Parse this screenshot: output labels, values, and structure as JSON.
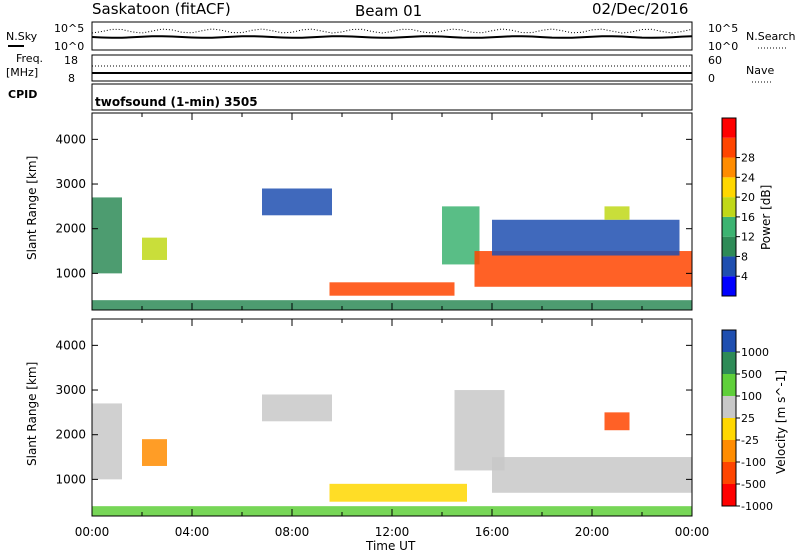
{
  "header": {
    "station": "Saskatoon (fitACF)",
    "beam": "Beam 01",
    "date": "02/Dec/2016"
  },
  "summary": {
    "nsky_label": "N.Sky",
    "nsearch_label": "N.Search",
    "freq_label": "Freq.",
    "freq_unit": "[MHz]",
    "cpid_label": "CPID",
    "nave_label": "Nave",
    "noise_ticks": [
      "10^5",
      "10^0"
    ],
    "freq_ticks": [
      "18",
      "8"
    ],
    "nave_ticks": [
      "60",
      "0"
    ],
    "program": "twofsound (1-min) 3505"
  },
  "colors": {
    "power": [
      "#0000ff",
      "#1f4fb0",
      "#2e8b57",
      "#3cb371",
      "#c0d818",
      "#ffd700",
      "#ff8c00",
      "#ff4500",
      "#ff0000"
    ],
    "velocity": [
      "#1f4fb0",
      "#2e8b57",
      "#5fcf3a",
      "#c8c8c8",
      "#ffd700",
      "#ff8c00",
      "#ff4500",
      "#ff0000"
    ],
    "ground": "#c8c8c8"
  },
  "chart_data": [
    {
      "type": "heatmap",
      "name": "Power",
      "ylabel": "Slant Range [km]",
      "xlabel": "Time UT",
      "xlim": [
        "00:00",
        "24:00"
      ],
      "ylim": [
        180,
        4590
      ],
      "yticks": [
        1000,
        2000,
        3000,
        4000
      ],
      "xticks": [
        "00:00",
        "04:00",
        "08:00",
        "12:00",
        "16:00",
        "20:00",
        "00:00"
      ],
      "colorbar": {
        "label": "Power [dB]",
        "ticks": [
          "4",
          "8",
          "12",
          "16",
          "20",
          "24",
          "28"
        ]
      },
      "regions": [
        {
          "t0": 0.0,
          "t1": 1.2,
          "r0": 1000,
          "r1": 2700,
          "level": 2
        },
        {
          "t0": 2.0,
          "t1": 3.0,
          "r0": 1300,
          "r1": 1800,
          "level": 4
        },
        {
          "t0": 6.8,
          "t1": 9.6,
          "r0": 2300,
          "r1": 2900,
          "level": 1
        },
        {
          "t0": 9.5,
          "t1": 14.5,
          "r0": 500,
          "r1": 800,
          "level": 7
        },
        {
          "t0": 14.0,
          "t1": 15.5,
          "r0": 1200,
          "r1": 2500,
          "level": 3
        },
        {
          "t0": 15.3,
          "t1": 24.0,
          "r0": 700,
          "r1": 1500,
          "level": 7
        },
        {
          "t0": 16.0,
          "t1": 23.5,
          "r0": 1400,
          "r1": 2200,
          "level": 1
        },
        {
          "t0": 20.5,
          "t1": 21.5,
          "r0": 2200,
          "r1": 2500,
          "level": 4
        },
        {
          "t0": 0.0,
          "t1": 24.0,
          "r0": 180,
          "r1": 400,
          "level": 2
        }
      ]
    },
    {
      "type": "heatmap",
      "name": "Velocity",
      "ylabel": "Slant Range [km]",
      "xlabel": "Time UT",
      "xlim": [
        "00:00",
        "24:00"
      ],
      "ylim": [
        180,
        4590
      ],
      "yticks": [
        1000,
        2000,
        3000,
        4000
      ],
      "xticks": [
        "00:00",
        "04:00",
        "08:00",
        "12:00",
        "16:00",
        "20:00",
        "00:00"
      ],
      "colorbar": {
        "label": "Velocity [m s^-1]",
        "ticks": [
          "1000",
          "500",
          "100",
          "25",
          "-25",
          "-100",
          "-500",
          "-1000"
        ]
      },
      "regions": [
        {
          "t0": 0.0,
          "t1": 1.2,
          "r0": 1000,
          "r1": 2700,
          "level": 3
        },
        {
          "t0": 2.0,
          "t1": 3.0,
          "r0": 1300,
          "r1": 1900,
          "level": 5
        },
        {
          "t0": 6.8,
          "t1": 9.6,
          "r0": 2300,
          "r1": 2900,
          "level": 3
        },
        {
          "t0": 9.5,
          "t1": 15.0,
          "r0": 500,
          "r1": 900,
          "level": 4
        },
        {
          "t0": 14.5,
          "t1": 16.5,
          "r0": 1200,
          "r1": 3000,
          "level": 3
        },
        {
          "t0": 16.0,
          "t1": 24.0,
          "r0": 700,
          "r1": 1500,
          "level": 3
        },
        {
          "t0": 20.5,
          "t1": 21.5,
          "r0": 2100,
          "r1": 2500,
          "level": 6
        },
        {
          "t0": 0.0,
          "t1": 24.0,
          "r0": 180,
          "r1": 400,
          "level": 2
        }
      ]
    }
  ],
  "axis_titles": {
    "power_ylabel": "Slant Range [km]",
    "velocity_ylabel": "Slant Range [km]",
    "xlabel": "Time UT"
  }
}
